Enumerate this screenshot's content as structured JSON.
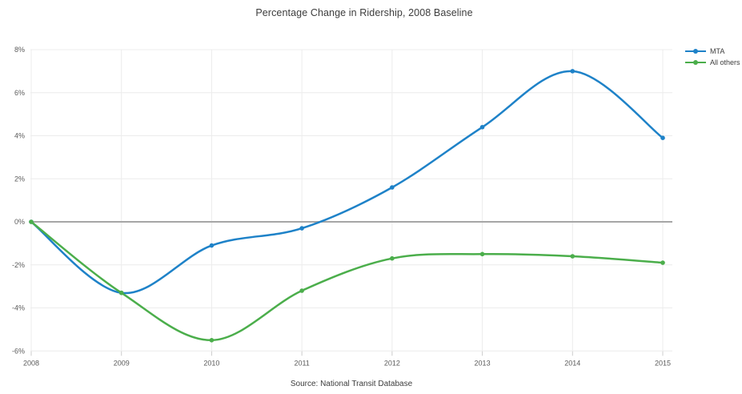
{
  "page": {
    "title": "Percentage Change in Ridership, 2008 Baseline",
    "source": "Source: National Transit Database"
  },
  "legend": {
    "position": "top-right",
    "items": [
      {
        "label": "MTA",
        "color": "#1e82c8"
      },
      {
        "label": "All others",
        "color": "#4bae4b"
      }
    ]
  },
  "colors": {
    "grid": "#ececec",
    "zero_line": "#a6a6a6",
    "tick": "#cccccc",
    "tick_label": "#5b5b5b",
    "title_text": "#3d3d3d"
  },
  "chart_data": {
    "type": "line",
    "curve": "spline",
    "markers": true,
    "title": "Percentage Change in Ridership, 2008 Baseline",
    "xlabel": "",
    "ylabel": "",
    "grid": true,
    "zero_line": true,
    "legend_position": "top-right",
    "x": [
      2008,
      2009,
      2010,
      2011,
      2012,
      2013,
      2014,
      2015
    ],
    "xtick_labels": [
      "2008",
      "2009",
      "2010",
      "2011",
      "2012",
      "2013",
      "2014",
      "2015"
    ],
    "ylim": [
      -6,
      8
    ],
    "yticks": [
      8,
      6,
      4,
      2,
      0,
      -2,
      -4,
      -6
    ],
    "ytick_labels": [
      "8%",
      "6%",
      "4%",
      "2%",
      "0%",
      "-2%",
      "-4%",
      "-6%"
    ],
    "series": [
      {
        "name": "MTA",
        "color": "#1e82c8",
        "values": [
          0,
          -3.3,
          -1.1,
          -0.3,
          1.6,
          4.4,
          7.0,
          3.9
        ]
      },
      {
        "name": "All others",
        "color": "#4bae4b",
        "values": [
          0,
          -3.3,
          -5.5,
          -3.2,
          -1.7,
          -1.5,
          -1.6,
          -1.9
        ]
      }
    ],
    "annotations": [
      "Source: National Transit Database"
    ]
  }
}
